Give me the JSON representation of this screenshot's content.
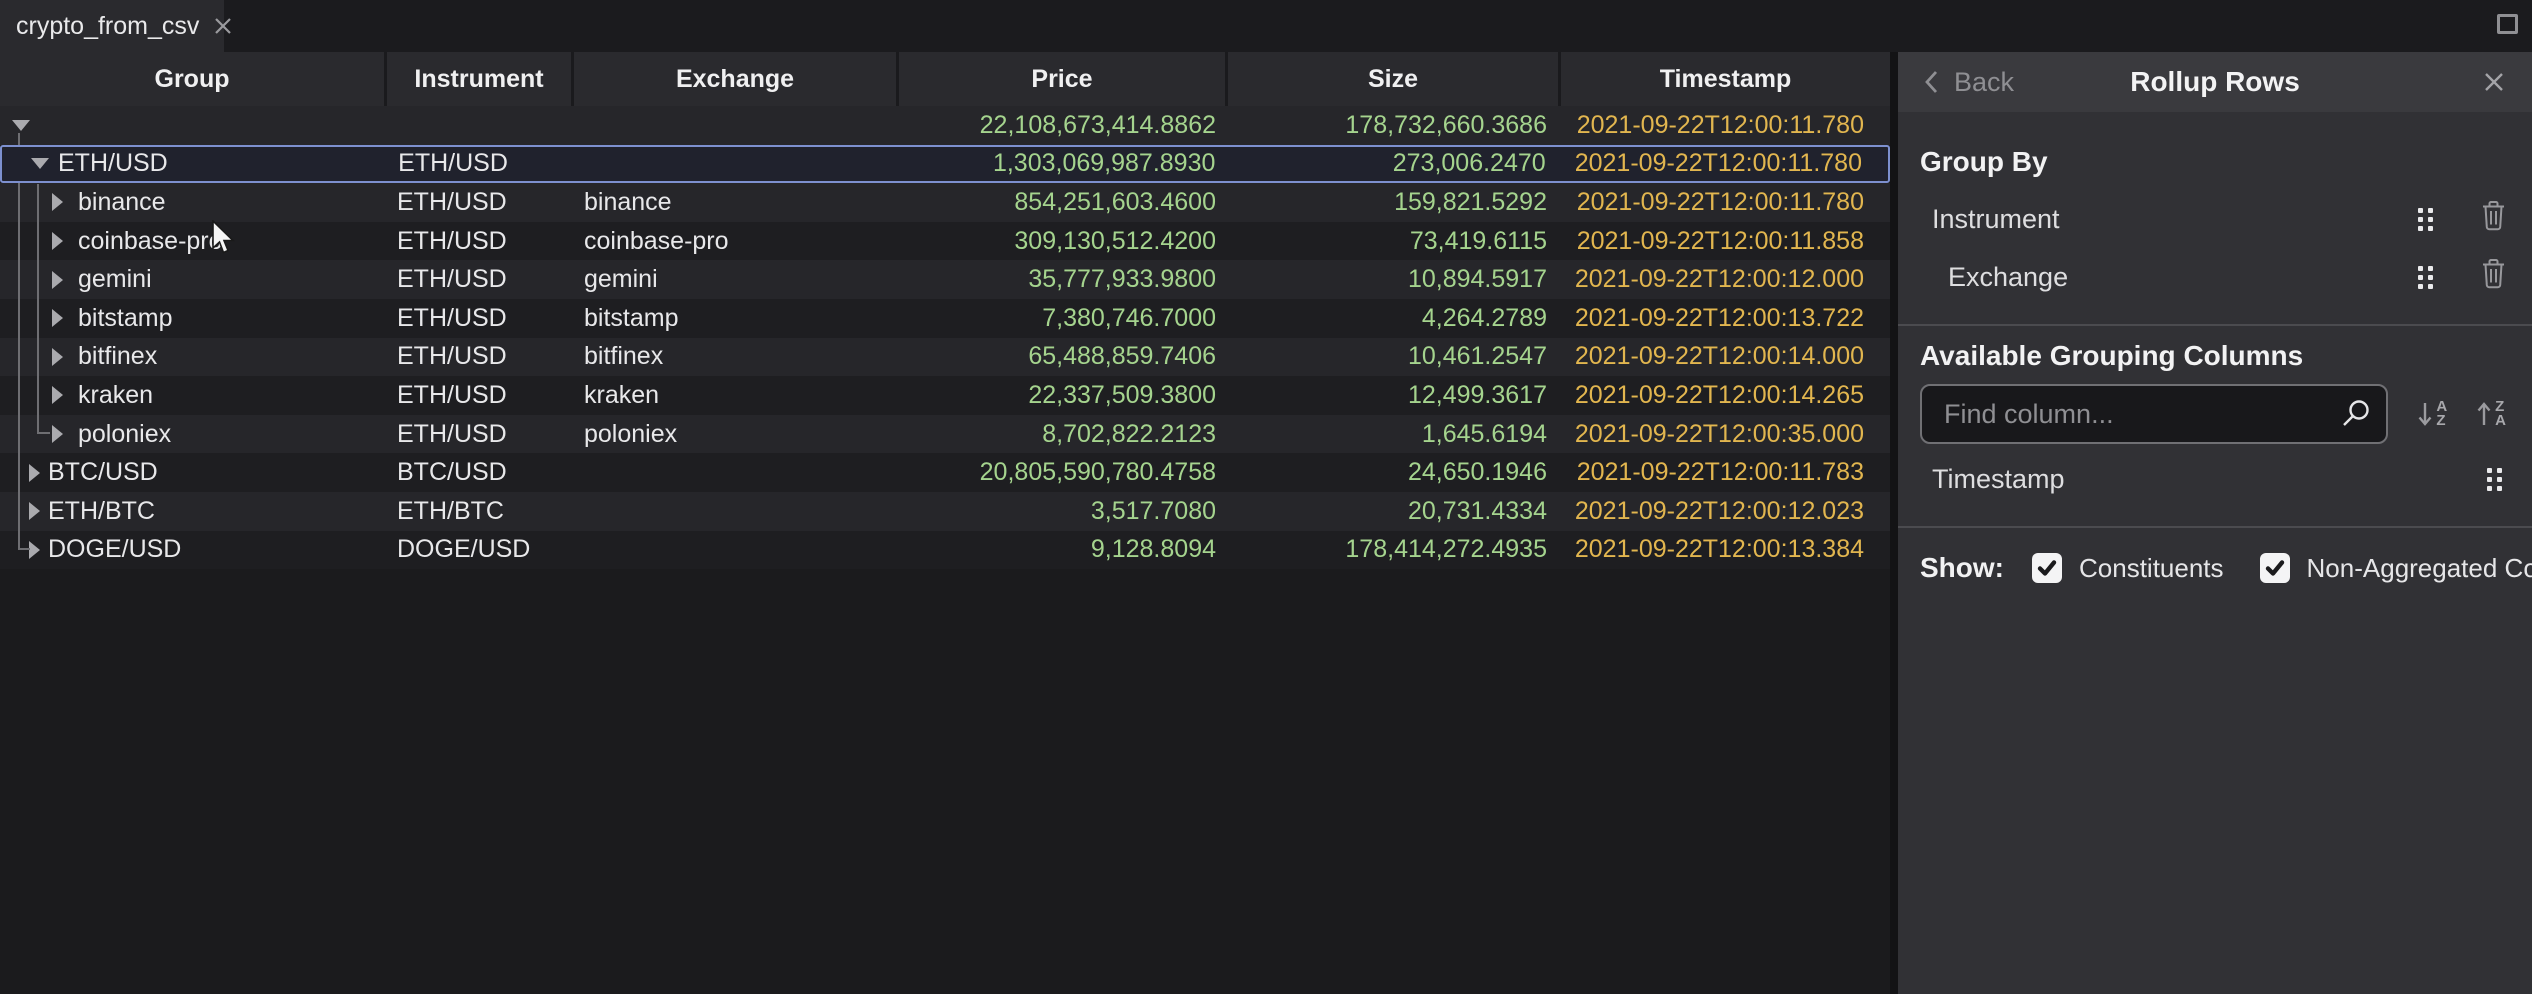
{
  "tab": {
    "title": "crypto_from_csv"
  },
  "table": {
    "columns": [
      {
        "label": "Group"
      },
      {
        "label": "Instrument"
      },
      {
        "label": "Exchange"
      },
      {
        "label": "Price"
      },
      {
        "label": "Size"
      },
      {
        "label": "Timestamp"
      }
    ],
    "rows": [
      {
        "level": 0,
        "arrow": "down",
        "group": "",
        "instrument": "",
        "exchange": "",
        "price": "22,108,673,414.8862",
        "size": "178,732,660.3686",
        "timestamp": "2021-09-22T12:00:11.780",
        "selected": false
      },
      {
        "level": 1,
        "arrow": "down",
        "group": "ETH/USD",
        "instrument": "ETH/USD",
        "exchange": "",
        "price": "1,303,069,987.8930",
        "size": "273,006.2470",
        "timestamp": "2021-09-22T12:00:11.780",
        "selected": true
      },
      {
        "level": 2,
        "arrow": "right",
        "group": "binance",
        "instrument": "ETH/USD",
        "exchange": "binance",
        "price": "854,251,603.4600",
        "size": "159,821.5292",
        "timestamp": "2021-09-22T12:00:11.780",
        "selected": false
      },
      {
        "level": 2,
        "arrow": "right",
        "group": "coinbase-pro",
        "instrument": "ETH/USD",
        "exchange": "coinbase-pro",
        "price": "309,130,512.4200",
        "size": "73,419.6115",
        "timestamp": "2021-09-22T12:00:11.858",
        "selected": false
      },
      {
        "level": 2,
        "arrow": "right",
        "group": "gemini",
        "instrument": "ETH/USD",
        "exchange": "gemini",
        "price": "35,777,933.9800",
        "size": "10,894.5917",
        "timestamp": "2021-09-22T12:00:12.000",
        "selected": false
      },
      {
        "level": 2,
        "arrow": "right",
        "group": "bitstamp",
        "instrument": "ETH/USD",
        "exchange": "bitstamp",
        "price": "7,380,746.7000",
        "size": "4,264.2789",
        "timestamp": "2021-09-22T12:00:13.722",
        "selected": false
      },
      {
        "level": 2,
        "arrow": "right",
        "group": "bitfinex",
        "instrument": "ETH/USD",
        "exchange": "bitfinex",
        "price": "65,488,859.7406",
        "size": "10,461.2547",
        "timestamp": "2021-09-22T12:00:14.000",
        "selected": false
      },
      {
        "level": 2,
        "arrow": "right",
        "group": "kraken",
        "instrument": "ETH/USD",
        "exchange": "kraken",
        "price": "22,337,509.3800",
        "size": "12,499.3617",
        "timestamp": "2021-09-22T12:00:14.265",
        "selected": false
      },
      {
        "level": 2,
        "arrow": "right",
        "group": "poloniex",
        "instrument": "ETH/USD",
        "exchange": "poloniex",
        "price": "8,702,822.2123",
        "size": "1,645.6194",
        "timestamp": "2021-09-22T12:00:35.000",
        "selected": false
      },
      {
        "level": 1,
        "arrow": "right",
        "group": "BTC/USD",
        "instrument": "BTC/USD",
        "exchange": "",
        "price": "20,805,590,780.4758",
        "size": "24,650.1946",
        "timestamp": "2021-09-22T12:00:11.783",
        "selected": false
      },
      {
        "level": 1,
        "arrow": "right",
        "group": "ETH/BTC",
        "instrument": "ETH/BTC",
        "exchange": "",
        "price": "3,517.7080",
        "size": "20,731.4334",
        "timestamp": "2021-09-22T12:00:12.023",
        "selected": false
      },
      {
        "level": 1,
        "arrow": "right",
        "group": "DOGE/USD",
        "instrument": "DOGE/USD",
        "exchange": "",
        "price": "9,128.8094",
        "size": "178,414,272.4935",
        "timestamp": "2021-09-22T12:00:13.384",
        "selected": false
      }
    ]
  },
  "panel": {
    "back_label": "Back",
    "title": "Rollup Rows",
    "group_by": {
      "heading": "Group By",
      "items": [
        {
          "label": "Instrument"
        },
        {
          "label": "Exchange"
        }
      ]
    },
    "available": {
      "heading": "Available Grouping Columns",
      "search_placeholder": "Find column...",
      "sort_ascending_letters": [
        "A",
        "Z"
      ],
      "sort_descending_letters": [
        "Z",
        "A"
      ],
      "items": [
        {
          "label": "Timestamp"
        }
      ]
    },
    "show": {
      "label": "Show:",
      "checkboxes": [
        {
          "label": "Constituents",
          "checked": true
        },
        {
          "label": "Non-Aggregated Columns",
          "checked": true
        }
      ]
    }
  },
  "colors": {
    "selection_border": "#7d90cf",
    "selection_bg": "#20222d",
    "positive_number": "#a5d48e",
    "timestamp_text": "#e2b64f"
  }
}
